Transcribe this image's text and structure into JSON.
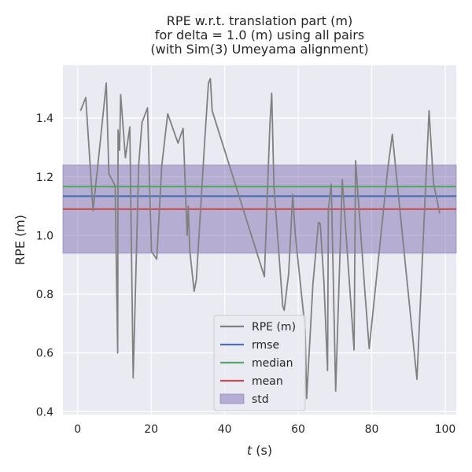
{
  "chart_data": {
    "type": "line",
    "title_lines": [
      "RPE w.r.t. translation part (m)",
      "for delta = 1.0 (m) using all pairs",
      "(with Sim(3) Umeyama alignment)"
    ],
    "xlabel_italic": "t",
    "xlabel_unit": " (s)",
    "ylabel": "RPE (m)",
    "xlim": [
      -4,
      103
    ],
    "ylim": [
      0.39,
      1.58
    ],
    "xticks": [
      0,
      20,
      40,
      60,
      80,
      100
    ],
    "yticks": [
      0.4,
      0.6,
      0.8,
      1.0,
      1.2,
      1.4
    ],
    "ytick_labels": [
      "0.4",
      "0.6",
      "0.8",
      "1.0",
      "1.2",
      "1.4"
    ],
    "grid": true,
    "legend_position": "bottom-center",
    "series": [
      {
        "name": "RPE (m)",
        "color": "#808080",
        "x": [
          0.8,
          2.2,
          4.2,
          6.0,
          7.8,
          8.5,
          10.2,
          10.9,
          11.0,
          11.4,
          11.7,
          13.0,
          14.2,
          15.1,
          16.6,
          17.5,
          19.0,
          20.1,
          21.5,
          22.9,
          24.5,
          27.3,
          28.7,
          29.8,
          30.1,
          30.5,
          31.7,
          32.3,
          34.6,
          35.6,
          36.1,
          36.6,
          50.8,
          52.3,
          52.8,
          53.4,
          55.8,
          56.2,
          57.4,
          58.5,
          59.2,
          61.9,
          62.3,
          64.0,
          65.5,
          66.0,
          67.0,
          68.0,
          68.2,
          69.0,
          70.2,
          72.0,
          75.2,
          75.6,
          78.2,
          79.3,
          84.3,
          85.6,
          92.3,
          95.6,
          96.8,
          98.5
        ],
        "values": [
          1.425,
          1.47,
          1.085,
          1.3,
          1.52,
          1.21,
          1.17,
          0.6,
          1.36,
          1.29,
          1.48,
          1.265,
          1.37,
          0.515,
          1.24,
          1.385,
          1.435,
          0.945,
          0.92,
          1.24,
          1.415,
          1.315,
          1.365,
          1.0,
          1.1,
          0.95,
          0.81,
          0.85,
          1.33,
          1.52,
          1.535,
          1.425,
          0.86,
          1.38,
          1.485,
          1.17,
          0.76,
          0.745,
          0.87,
          1.14,
          1.005,
          0.68,
          0.445,
          0.835,
          1.045,
          1.04,
          0.84,
          0.54,
          1.09,
          1.175,
          0.47,
          1.19,
          0.61,
          1.255,
          0.8,
          0.615,
          1.22,
          1.345,
          0.51,
          1.425,
          1.18,
          1.075
        ]
      },
      {
        "name": "rmse",
        "color": "#4c72b0",
        "value": 1.134
      },
      {
        "name": "median",
        "color": "#55a868",
        "value": 1.167
      },
      {
        "name": "mean",
        "color": "#c44e52",
        "value": 1.09
      },
      {
        "name": "std",
        "color": "#8172b2",
        "band": [
          0.94,
          1.24
        ]
      }
    ]
  }
}
